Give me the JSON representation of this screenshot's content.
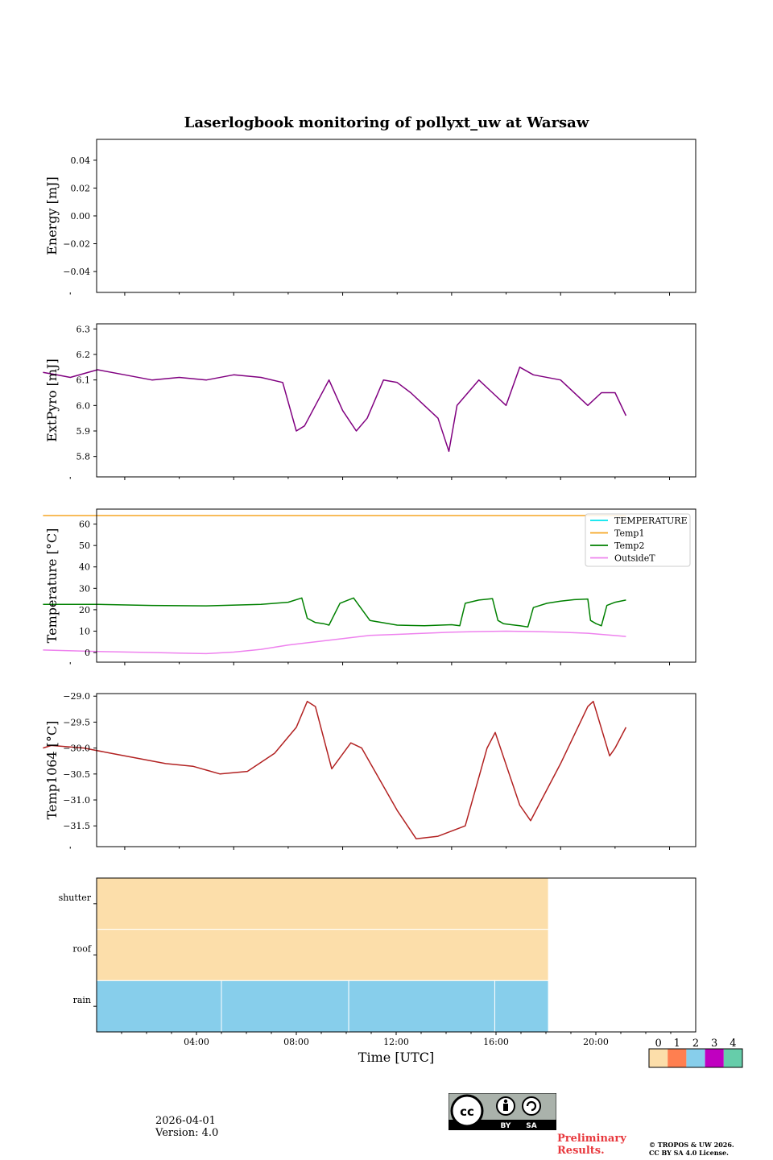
{
  "chart_data": [
    {
      "type": "line",
      "title": "Laserlogbook monitoring of pollyxt_uw at Warsaw",
      "ylabel": "Energy [mJ]",
      "ylim": [
        -0.055,
        0.055
      ],
      "yticks": [
        0.04,
        0.02,
        0.0,
        -0.02,
        -0.04
      ],
      "ytick_labels": [
        "0.04",
        "0.02",
        "0.00",
        "−0.02",
        "−0.04"
      ],
      "series": []
    },
    {
      "type": "line",
      "ylabel": "ExtPyro [mJ]",
      "ylim": [
        5.72,
        6.32
      ],
      "yticks": [
        6.3,
        6.2,
        6.1,
        6.0,
        5.9,
        5.8
      ],
      "ytick_labels": [
        "6.3",
        "6.2",
        "6.1",
        "6.0",
        "5.9",
        "5.8"
      ],
      "series": [
        {
          "name": "ExtPyro",
          "color": "#800080",
          "x_hours": [
            1.0,
            1.5,
            2.0,
            3.0,
            4.0,
            5.0,
            6.0,
            7.0,
            8.0,
            9.0,
            9.8,
            10.3,
            10.6,
            11.0,
            11.5,
            12.0,
            12.5,
            12.9,
            13.5,
            14.0,
            14.5,
            15.0,
            15.5,
            15.9,
            16.2,
            17.0,
            17.5,
            18.0,
            18.5,
            19.0,
            20.0,
            21.0,
            21.5,
            22.0,
            22.4
          ],
          "values": [
            6.13,
            6.12,
            6.11,
            6.14,
            6.12,
            6.1,
            6.11,
            6.1,
            6.12,
            6.11,
            6.09,
            5.9,
            5.92,
            6.0,
            6.1,
            5.98,
            5.9,
            5.95,
            6.1,
            6.09,
            6.05,
            6.0,
            5.95,
            5.82,
            6.0,
            6.1,
            6.05,
            6.0,
            6.15,
            6.12,
            6.1,
            6.0,
            6.05,
            6.05,
            5.96
          ]
        }
      ]
    },
    {
      "type": "line",
      "ylabel": "Temperature [°C]",
      "ylim": [
        -4.5,
        67
      ],
      "yticks": [
        60,
        50,
        40,
        30,
        20,
        10,
        0
      ],
      "ytick_labels": [
        "60",
        "50",
        "40",
        "30",
        "20",
        "10",
        "0"
      ],
      "legend_position": "top-right",
      "series": [
        {
          "name": "TEMPERATURE",
          "color": "#00e5ee",
          "x_hours": [],
          "values": []
        },
        {
          "name": "Temp1",
          "color": "#f5a623",
          "x_hours": [
            1.0,
            22.4
          ],
          "values": [
            64,
            64
          ]
        },
        {
          "name": "Temp2",
          "color": "#008000",
          "x_hours": [
            1.0,
            3.0,
            5.0,
            7.0,
            9.0,
            10.0,
            10.5,
            10.7,
            11.0,
            11.3,
            11.5,
            11.9,
            12.2,
            12.4,
            13.0,
            14.0,
            15.0,
            16.0,
            16.3,
            16.5,
            17.0,
            17.5,
            17.7,
            17.9,
            18.5,
            18.8,
            19.0,
            19.5,
            20.0,
            20.5,
            21.0,
            21.1,
            21.3,
            21.5,
            21.7,
            22.0,
            22.4
          ],
          "values": [
            22.5,
            22.5,
            22.0,
            21.8,
            22.5,
            23.5,
            25.5,
            16,
            14,
            13.5,
            12.8,
            23,
            24.5,
            25.5,
            15,
            12.8,
            12.5,
            13,
            12.5,
            23,
            24.5,
            25.2,
            15,
            13.5,
            12.5,
            12,
            21,
            23,
            24,
            24.7,
            25,
            15,
            13.5,
            12.5,
            22,
            23.5,
            24.5
          ]
        },
        {
          "name": "OutsideT",
          "color": "#ee82ee",
          "x_hours": [
            1.0,
            3.0,
            5.0,
            6.0,
            7.0,
            8.0,
            9.0,
            10.0,
            11.0,
            12.0,
            13.0,
            14.0,
            15.0,
            16.0,
            17.0,
            18.0,
            19.0,
            20.0,
            21.0,
            22.4
          ],
          "values": [
            1.2,
            0.5,
            0.0,
            -0.3,
            -0.5,
            0.2,
            1.5,
            3.5,
            5.0,
            6.5,
            8.0,
            8.5,
            9.0,
            9.5,
            9.8,
            10.0,
            9.8,
            9.5,
            9.0,
            7.5
          ]
        }
      ]
    },
    {
      "type": "line",
      "ylabel": "Temp1064 [°C]",
      "ylim": [
        -31.9,
        -28.95
      ],
      "yticks": [
        -29.0,
        -29.5,
        -30.0,
        -30.5,
        -31.0,
        -31.5
      ],
      "ytick_labels": [
        "−29.0",
        "−29.5",
        "−30.0",
        "−30.5",
        "−31.0",
        "−31.5"
      ],
      "series": [
        {
          "name": "Temp1064",
          "color": "#b22222",
          "x_hours": [
            1.0,
            1.3,
            2.5,
            3.5,
            5.5,
            6.5,
            7.5,
            8.5,
            9.5,
            10.3,
            10.7,
            11.0,
            11.6,
            12.3,
            12.7,
            14.0,
            14.7,
            15.5,
            16.5,
            17.3,
            17.6,
            18.5,
            18.9,
            19.3,
            20.0,
            21.0,
            21.2,
            21.8,
            22.0,
            22.4
          ],
          "values": [
            -30.0,
            -29.95,
            -30.0,
            -30.1,
            -30.3,
            -30.35,
            -30.5,
            -30.45,
            -30.1,
            -29.6,
            -29.1,
            -29.2,
            -30.4,
            -29.9,
            -30.0,
            -31.2,
            -31.75,
            -31.7,
            -31.5,
            -30.0,
            -29.7,
            -31.1,
            -31.4,
            -31.0,
            -30.3,
            -29.2,
            -29.1,
            -30.15,
            -30.0,
            -29.6
          ]
        }
      ]
    },
    {
      "type": "heatmap",
      "xlabel": "Time [UTC]",
      "rows": [
        "rain",
        "roof",
        "shutter"
      ],
      "xlim_hours": [
        0,
        24
      ],
      "xticks_hours": [
        4,
        8,
        12,
        16,
        20
      ],
      "xtick_labels": [
        "04:00",
        "08:00",
        "12:00",
        "16:00",
        "20:00"
      ],
      "segments": [
        {
          "row": "shutter",
          "start": 0,
          "end": 18.1,
          "state": 0
        },
        {
          "row": "roof",
          "start": 0,
          "end": 18.1,
          "state": 0
        },
        {
          "row": "rain",
          "start": 0,
          "end": 5.0,
          "state": 2
        },
        {
          "row": "rain",
          "start": 5.0,
          "end": 10.1,
          "state": 2
        },
        {
          "row": "rain",
          "start": 10.1,
          "end": 15.95,
          "state": 2
        },
        {
          "row": "rain",
          "start": 15.95,
          "end": 18.1,
          "state": 2
        }
      ],
      "colorbar": {
        "labels": [
          "0",
          "1",
          "2",
          "3",
          "4"
        ],
        "colors": [
          "#fcdeaa",
          "#ff7f50",
          "#87ceeb",
          "#c000c0",
          "#66cdaa"
        ]
      }
    }
  ],
  "footer": {
    "date": "2026-04-01",
    "version": "Version: 4.0",
    "preliminary": "Preliminary Results.",
    "copyright_line1": "© TROPOS & UW 2026.",
    "copyright_line2": "CC BY SA 4.0 License.",
    "license_badge_text": [
      "BY",
      "SA"
    ]
  }
}
